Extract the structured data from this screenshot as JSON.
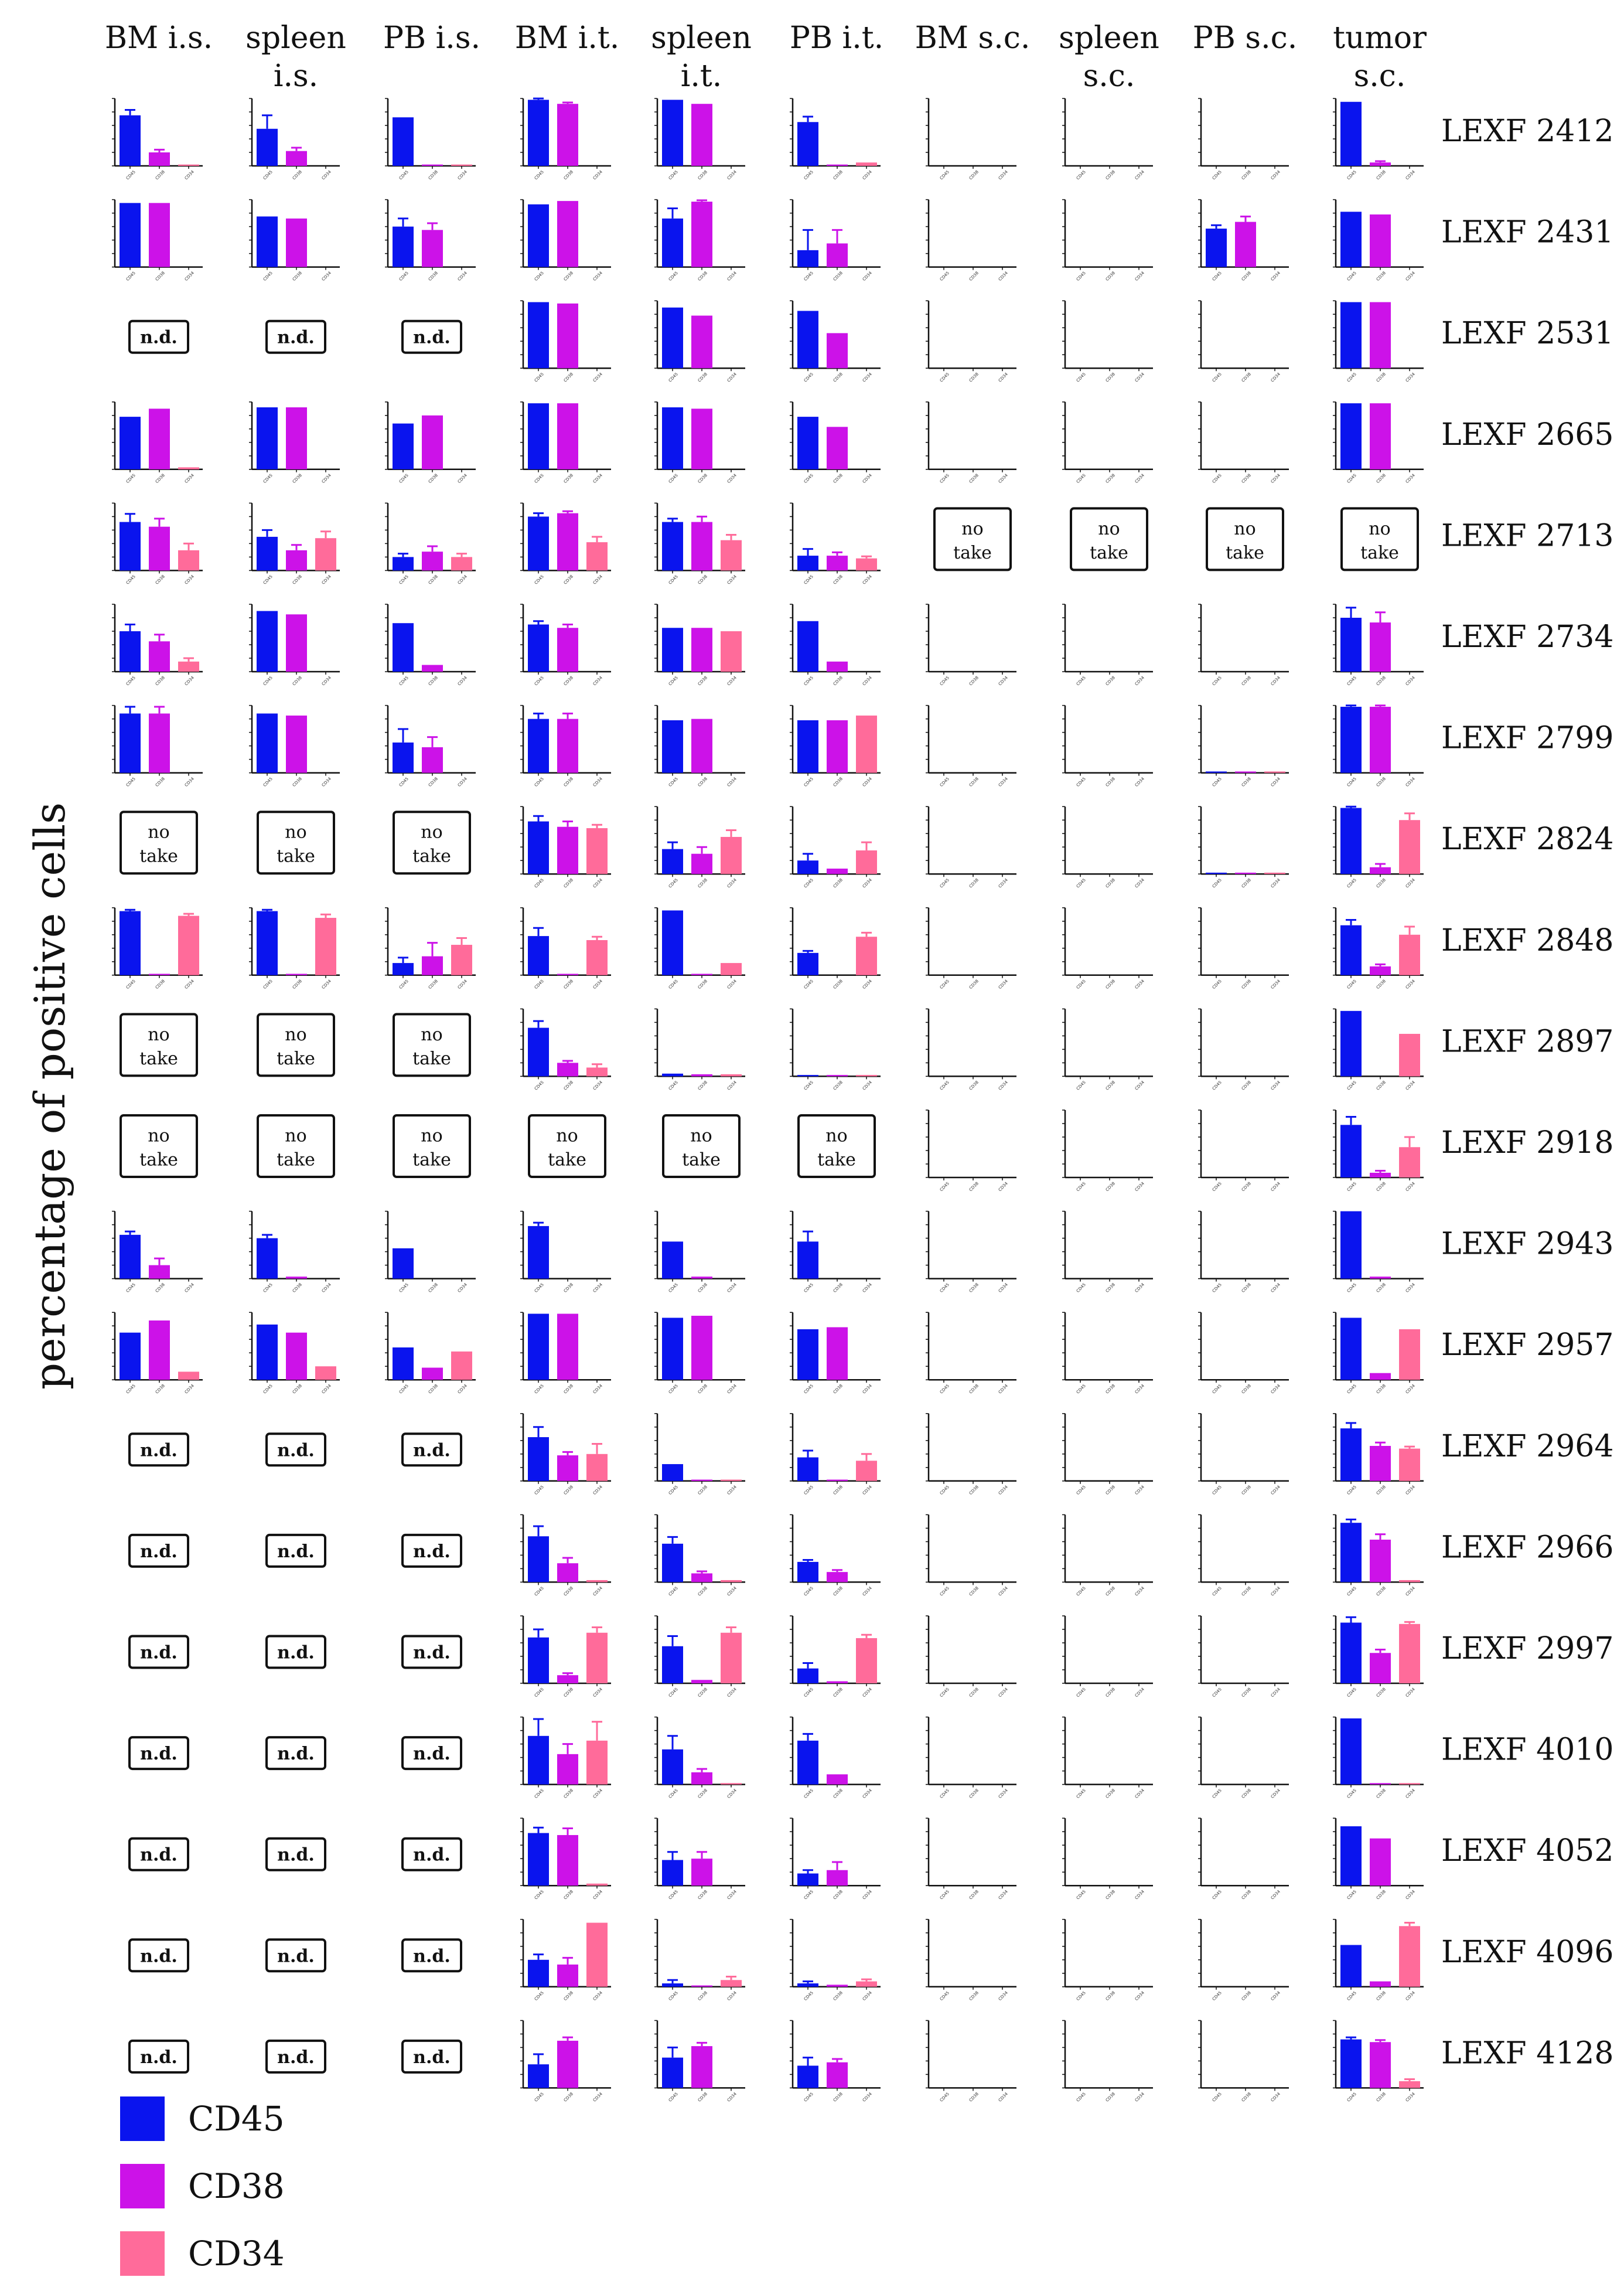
{
  "chart_data": {
    "type": "bar",
    "ylabel": "percentage of positive cells",
    "categories": [
      "CD45",
      "CD38",
      "CD34"
    ],
    "ylim": [
      0,
      100
    ],
    "columns": [
      "BM i.s.",
      "spleen i.s.",
      "PB i.s.",
      "BM i.t.",
      "spleen i.t.",
      "PB i.t.",
      "BM s.c.",
      "spleen s.c.",
      "PB s.c.",
      "tumor s.c."
    ],
    "rows": [
      "LEXF 2412",
      "LEXF 2431",
      "LEXF 2531",
      "LEXF 2665",
      "LEXF 2713",
      "LEXF 2734",
      "LEXF 2799",
      "LEXF 2824",
      "LEXF 2848",
      "LEXF 2897",
      "LEXF 2918",
      "LEXF 2943",
      "LEXF 2957",
      "LEXF 2964",
      "LEXF 2966",
      "LEXF 2997",
      "LEXF 4010",
      "LEXF 4052",
      "LEXF 4096",
      "LEXF 4128"
    ],
    "cells": [
      [
        [
          75,
          20,
          2
        ],
        [
          55,
          22,
          0
        ],
        [
          72,
          2,
          2
        ],
        [
          98,
          92,
          0
        ],
        [
          98,
          92,
          0
        ],
        [
          65,
          2,
          5
        ],
        [
          0,
          0,
          0
        ],
        [
          0,
          0,
          0
        ],
        [
          0,
          0,
          0
        ],
        [
          95,
          5,
          0
        ]
      ],
      [
        [
          95,
          95,
          0
        ],
        [
          75,
          72,
          0
        ],
        [
          60,
          55,
          0
        ],
        [
          93,
          98,
          0
        ],
        [
          72,
          97,
          0
        ],
        [
          25,
          35,
          0
        ],
        [
          0,
          0,
          0
        ],
        [
          0,
          0,
          0
        ],
        [
          57,
          67,
          0
        ],
        [
          82,
          78,
          0
        ]
      ],
      [
        "n.d.",
        "n.d.",
        "n.d.",
        [
          98,
          96,
          0
        ],
        [
          90,
          78,
          0
        ],
        [
          85,
          52,
          0
        ],
        [
          0,
          0,
          0
        ],
        [
          0,
          0,
          0
        ],
        [
          0,
          0,
          0
        ],
        [
          98,
          98,
          0
        ]
      ],
      [
        [
          78,
          90,
          3
        ],
        [
          92,
          92,
          0
        ],
        [
          68,
          80,
          0
        ],
        [
          98,
          98,
          0
        ],
        [
          92,
          90,
          0
        ],
        [
          78,
          63,
          0
        ],
        [
          0,
          0,
          0
        ],
        [
          0,
          0,
          0
        ],
        [
          0,
          0,
          0
        ],
        [
          98,
          98,
          0
        ]
      ],
      [
        [
          72,
          65,
          30
        ],
        [
          50,
          30,
          48
        ],
        [
          20,
          28,
          20
        ],
        [
          80,
          85,
          42
        ],
        [
          72,
          72,
          45
        ],
        [
          22,
          22,
          18
        ],
        "no take",
        "no take",
        "no take",
        "no take"
      ],
      [
        [
          60,
          45,
          15
        ],
        [
          90,
          85,
          0
        ],
        [
          72,
          10,
          0
        ],
        [
          70,
          65,
          0
        ],
        [
          65,
          65,
          60
        ],
        [
          75,
          15,
          0
        ],
        [
          0,
          0,
          0
        ],
        [
          0,
          0,
          0
        ],
        [
          0,
          0,
          0
        ],
        [
          80,
          73,
          0
        ]
      ],
      [
        [
          88,
          88,
          0
        ],
        [
          88,
          85,
          0
        ],
        [
          45,
          38,
          0
        ],
        [
          80,
          80,
          0
        ],
        [
          78,
          80,
          0
        ],
        [
          78,
          78,
          85
        ],
        [
          0,
          0,
          0
        ],
        [
          0,
          0,
          0
        ],
        [
          2,
          2,
          2
        ],
        [
          98,
          98,
          0
        ]
      ],
      [
        "no take",
        "no take",
        "no take",
        [
          78,
          70,
          68
        ],
        [
          37,
          30,
          55
        ],
        [
          20,
          8,
          35
        ],
        [
          0,
          0,
          0
        ],
        [
          0,
          0,
          0
        ],
        [
          2,
          2,
          2
        ],
        [
          98,
          10,
          80
        ]
      ],
      [
        [
          95,
          2,
          88
        ],
        [
          95,
          2,
          85
        ],
        [
          18,
          28,
          45
        ],
        [
          58,
          2,
          52
        ],
        [
          96,
          2,
          18
        ],
        [
          33,
          0,
          57
        ],
        [
          0,
          0,
          0
        ],
        [
          0,
          0,
          0
        ],
        [
          0,
          0,
          0
        ],
        [
          74,
          13,
          60
        ]
      ],
      [
        "no take",
        "no take",
        "no take",
        [
          72,
          20,
          13
        ],
        [
          4,
          3,
          3
        ],
        [
          2,
          2,
          2
        ],
        [
          0,
          0,
          0
        ],
        [
          0,
          0,
          0
        ],
        [
          0,
          0,
          0
        ],
        [
          97,
          0,
          63
        ]
      ],
      [
        "no take",
        "no take",
        "no take",
        "no take",
        "no take",
        "no take",
        [
          0,
          0,
          0
        ],
        [
          0,
          0,
          0
        ],
        [
          0,
          0,
          0
        ],
        [
          78,
          7,
          45
        ]
      ],
      [
        [
          65,
          20,
          0
        ],
        [
          60,
          3,
          0
        ],
        [
          45,
          0,
          0
        ],
        [
          78,
          0,
          0
        ],
        [
          55,
          3,
          0
        ],
        [
          55,
          0,
          0
        ],
        [
          0,
          0,
          0
        ],
        [
          0,
          0,
          0
        ],
        [
          0,
          0,
          0
        ],
        [
          100,
          3,
          0
        ]
      ],
      [
        [
          70,
          88,
          12
        ],
        [
          82,
          70,
          20
        ],
        [
          48,
          18,
          42
        ],
        [
          98,
          98,
          0
        ],
        [
          92,
          95,
          0
        ],
        [
          75,
          78,
          0
        ],
        [
          0,
          0,
          0
        ],
        [
          0,
          0,
          0
        ],
        [
          0,
          0,
          0
        ],
        [
          92,
          10,
          75
        ]
      ],
      [
        "n.d.",
        "n.d.",
        "n.d.",
        [
          65,
          38,
          40
        ],
        [
          25,
          2,
          2
        ],
        [
          35,
          2,
          30
        ],
        [
          0,
          0,
          0
        ],
        [
          0,
          0,
          0
        ],
        [
          0,
          0,
          0
        ],
        [
          78,
          52,
          48
        ]
      ],
      [
        "n.d.",
        "n.d.",
        "n.d.",
        [
          68,
          28,
          3
        ],
        [
          57,
          13,
          3
        ],
        [
          30,
          15,
          0
        ],
        [
          0,
          0,
          0
        ],
        [
          0,
          0,
          0
        ],
        [
          0,
          0,
          0
        ],
        [
          88,
          63,
          3
        ]
      ],
      [
        "n.d.",
        "n.d.",
        "n.d.",
        [
          68,
          12,
          75
        ],
        [
          55,
          5,
          75
        ],
        [
          22,
          3,
          67
        ],
        [
          0,
          0,
          0
        ],
        [
          0,
          0,
          0
        ],
        [
          0,
          0,
          0
        ],
        [
          90,
          45,
          88
        ]
      ],
      [
        "n.d.",
        "n.d.",
        "n.d.",
        [
          72,
          45,
          65
        ],
        [
          52,
          18,
          2
        ],
        [
          65,
          15,
          0
        ],
        [
          0,
          0,
          0
        ],
        [
          0,
          0,
          0
        ],
        [
          0,
          0,
          0
        ],
        [
          98,
          2,
          2
        ]
      ],
      [
        "n.d.",
        "n.d.",
        "n.d.",
        [
          78,
          75,
          3
        ],
        [
          38,
          40,
          0
        ],
        [
          18,
          23,
          0
        ],
        [
          0,
          0,
          0
        ],
        [
          0,
          0,
          0
        ],
        [
          0,
          0,
          0
        ],
        [
          88,
          70,
          0
        ]
      ],
      [
        "n.d.",
        "n.d.",
        "n.d.",
        [
          40,
          33,
          95
        ],
        [
          5,
          2,
          10
        ],
        [
          5,
          3,
          8
        ],
        [
          0,
          0,
          0
        ],
        [
          0,
          0,
          0
        ],
        [
          0,
          0,
          0
        ],
        [
          62,
          8,
          90
        ]
      ],
      [
        "n.d.",
        "n.d.",
        "n.d.",
        [
          35,
          70,
          0
        ],
        [
          45,
          62,
          0
        ],
        [
          33,
          38,
          0
        ],
        [
          0,
          0,
          0
        ],
        [
          0,
          0,
          0
        ],
        [
          0,
          0,
          0
        ],
        [
          72,
          68,
          10
        ]
      ]
    ],
    "errors": {
      "0": {
        "0": [
          8,
          4,
          0
        ],
        "1": [
          20,
          5,
          0
        ],
        "3": [
          2,
          2,
          0
        ],
        "5": [
          8,
          0,
          0
        ],
        "9": [
          0,
          2,
          0
        ]
      },
      "1": {
        "2": [
          12,
          10,
          0
        ],
        "4": [
          15,
          2,
          0
        ],
        "5": [
          30,
          20,
          0
        ],
        "8": [
          5,
          8,
          0
        ]
      },
      "4": {
        "0": [
          12,
          12,
          10
        ],
        "1": [
          10,
          8,
          10
        ],
        "2": [
          5,
          8,
          5
        ],
        "3": [
          5,
          3,
          8
        ],
        "4": [
          5,
          8,
          8
        ],
        "5": [
          10,
          5,
          3
        ]
      },
      "5": {
        "0": [
          10,
          10,
          5
        ],
        "3": [
          5,
          5,
          0
        ],
        "9": [
          15,
          15,
          0
        ]
      },
      "6": {
        "0": [
          10,
          10,
          0
        ],
        "2": [
          20,
          15,
          0
        ],
        "3": [
          8,
          8,
          0
        ],
        "9": [
          2,
          2,
          0
        ]
      },
      "7": {
        "3": [
          8,
          8,
          5
        ],
        "4": [
          10,
          10,
          10
        ],
        "5": [
          10,
          0,
          12
        ],
        "9": [
          2,
          5,
          10
        ]
      },
      "8": {
        "0": [
          2,
          0,
          3
        ],
        "1": [
          2,
          0,
          5
        ],
        "2": [
          8,
          20,
          10
        ],
        "3": [
          12,
          0,
          5
        ],
        "5": [
          3,
          0,
          6
        ],
        "9": [
          8,
          3,
          12
        ]
      },
      "9": {
        "3": [
          10,
          3,
          5
        ]
      },
      "10": {
        "9": [
          12,
          3,
          15
        ]
      },
      "11": {
        "0": [
          5,
          10,
          0
        ],
        "1": [
          5,
          0,
          0
        ],
        "3": [
          5,
          0,
          0
        ],
        "5": [
          15,
          0,
          0
        ]
      },
      "13": {
        "3": [
          15,
          5,
          15
        ],
        "5": [
          10,
          0,
          10
        ],
        "9": [
          8,
          5,
          3
        ]
      },
      "14": {
        "3": [
          15,
          8,
          0
        ],
        "4": [
          10,
          3,
          0
        ],
        "5": [
          3,
          3,
          0
        ],
        "9": [
          5,
          8,
          0
        ]
      },
      "15": {
        "3": [
          12,
          3,
          8
        ],
        "4": [
          15,
          0,
          8
        ],
        "5": [
          8,
          0,
          5
        ],
        "9": [
          8,
          5,
          3
        ]
      },
      "16": {
        "3": [
          25,
          15,
          28
        ],
        "4": [
          20,
          5,
          0
        ],
        "5": [
          10,
          0,
          0
        ]
      },
      "17": {
        "3": [
          8,
          10,
          0
        ],
        "4": [
          12,
          10,
          0
        ],
        "5": [
          5,
          12,
          0
        ]
      },
      "18": {
        "3": [
          8,
          10,
          0
        ],
        "4": [
          5,
          0,
          5
        ],
        "5": [
          3,
          0,
          3
        ],
        "9": [
          0,
          0,
          5
        ]
      },
      "19": {
        "3": [
          15,
          5,
          0
        ],
        "4": [
          15,
          5,
          0
        ],
        "5": [
          12,
          5,
          0
        ],
        "9": [
          3,
          3,
          3
        ]
      }
    },
    "legend": [
      "CD45",
      "CD38",
      "CD34"
    ],
    "legend_placement": "bottom-left",
    "colors": {
      "CD45": "#0a14ee",
      "CD38": "#cc12e8",
      "CD34": "#ff6b9a"
    },
    "placeholders": {
      "n.d.": "n.d.",
      "no take": "no take"
    },
    "grid": false
  }
}
